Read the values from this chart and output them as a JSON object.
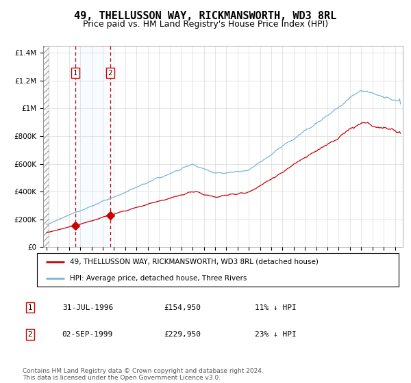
{
  "title": "49, THELLUSSON WAY, RICKMANSWORTH, WD3 8RL",
  "subtitle": "Price paid vs. HM Land Registry's House Price Index (HPI)",
  "title_fontsize": 11,
  "subtitle_fontsize": 9,
  "ylim": [
    0,
    1450000
  ],
  "xlim_start": 1993.7,
  "xlim_end": 2025.7,
  "hpi_color": "#7ab4d8",
  "price_color": "#cc0000",
  "marker_color": "#cc0000",
  "shade_color": "#ddeeff",
  "dashed_color": "#cc0000",
  "transaction1_date": 1996.58,
  "transaction1_price": 154950,
  "transaction2_date": 1999.67,
  "transaction2_price": 229950,
  "legend_label_price": "49, THELLUSSON WAY, RICKMANSWORTH, WD3 8RL (detached house)",
  "legend_label_hpi": "HPI: Average price, detached house, Three Rivers",
  "table_row1": [
    "1",
    "31-JUL-1996",
    "£154,950",
    "11% ↓ HPI"
  ],
  "table_row2": [
    "2",
    "02-SEP-1999",
    "£229,950",
    "23% ↓ HPI"
  ],
  "footnote": "Contains HM Land Registry data © Crown copyright and database right 2024.\nThis data is licensed under the Open Government Licence v3.0.",
  "yticks": [
    0,
    200000,
    400000,
    600000,
    800000,
    1000000,
    1200000,
    1400000
  ],
  "ytick_labels": [
    "£0",
    "£200K",
    "£400K",
    "£600K",
    "£800K",
    "£1M",
    "£1.2M",
    "£1.4M"
  ]
}
